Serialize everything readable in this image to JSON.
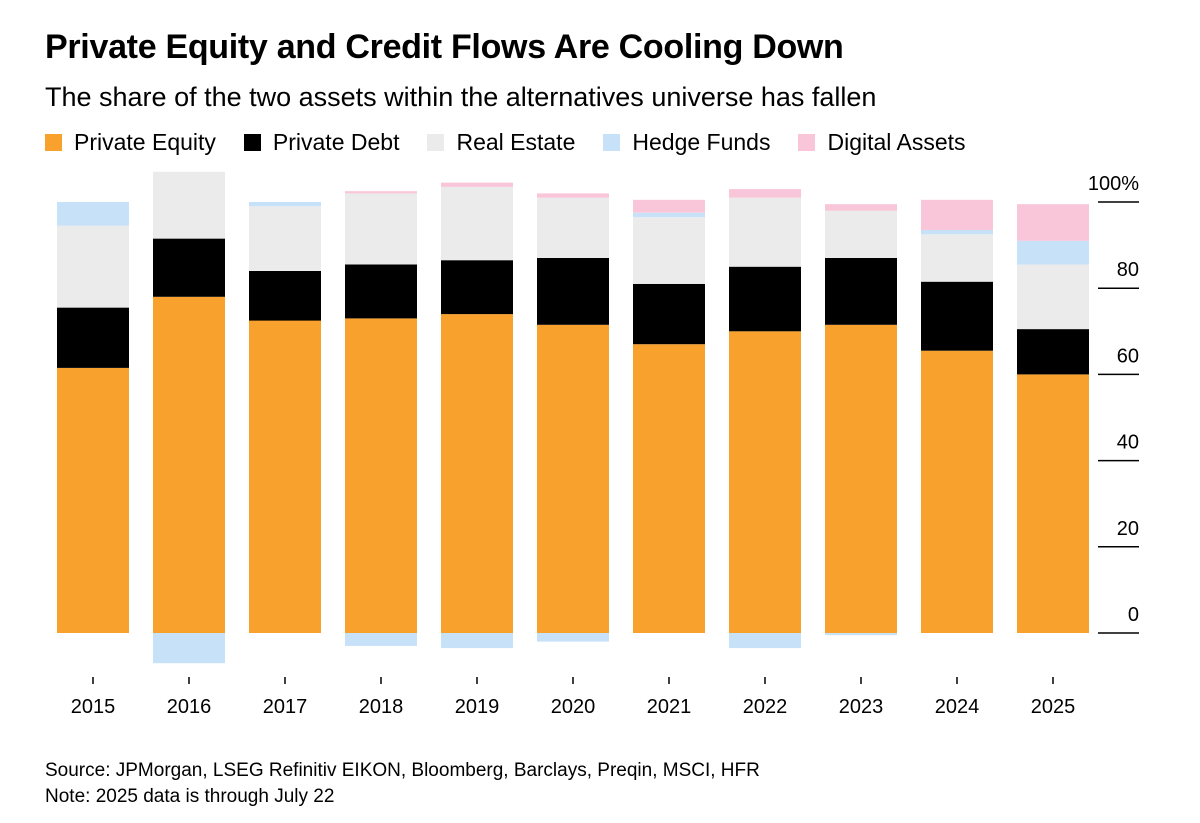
{
  "title": "Private Equity and Credit Flows Are Cooling Down",
  "subtitle": "The share of the two assets within the alternatives universe has fallen",
  "legend": [
    {
      "label": "Private Equity",
      "color": "#F8A22D"
    },
    {
      "label": "Private Debt",
      "color": "#000000"
    },
    {
      "label": "Real Estate",
      "color": "#EBEBEB"
    },
    {
      "label": "Hedge Funds",
      "color": "#C7E1F8"
    },
    {
      "label": "Digital Assets",
      "color": "#F9C5D8"
    }
  ],
  "source": "Source: JPMorgan, LSEG Refinitiv EIKON, Bloomberg, Barclays, Preqin, MSCI, HFR",
  "note": "Note: 2025 data is through July 22",
  "chart_data": {
    "type": "bar",
    "stacked": true,
    "categories": [
      "2015",
      "2016",
      "2017",
      "2018",
      "2019",
      "2020",
      "2021",
      "2022",
      "2023",
      "2024",
      "2025"
    ],
    "series": [
      {
        "name": "Private Equity",
        "color": "#F8A22D",
        "values": [
          61.5,
          78,
          72.5,
          73,
          74,
          71.5,
          67,
          70,
          71.5,
          65.5,
          60
        ]
      },
      {
        "name": "Private Debt",
        "color": "#000000",
        "values": [
          14,
          13.5,
          11.5,
          12.5,
          12.5,
          15.5,
          14,
          15,
          15.5,
          16,
          10.5
        ]
      },
      {
        "name": "Real Estate",
        "color": "#EBEBEB",
        "values": [
          19,
          15.5,
          15,
          16.5,
          17,
          14,
          15.5,
          16,
          11,
          11,
          15
        ]
      },
      {
        "name": "Hedge Funds",
        "color": "#C7E1F8",
        "values": [
          5.5,
          -7,
          1,
          -3,
          -3.5,
          -2,
          1,
          -3.5,
          -0.5,
          1,
          5.5
        ]
      },
      {
        "name": "Digital Assets",
        "color": "#F9C5D8",
        "values": [
          0,
          0,
          0,
          0.5,
          1,
          1,
          3,
          2,
          1.5,
          7,
          8.5
        ]
      }
    ],
    "y_ticks": [
      "0",
      "20",
      "40",
      "60",
      "80",
      "100%"
    ],
    "ylim": [
      -8,
      108
    ],
    "grid": false,
    "legend_position": "top-left"
  }
}
